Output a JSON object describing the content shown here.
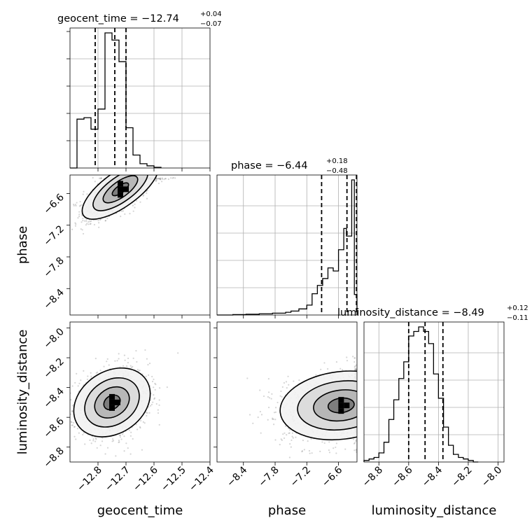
{
  "chart_data": {
    "type": "corner",
    "parameters": [
      "geocent_time",
      "phase",
      "luminosity_distance"
    ],
    "axis_labels": {
      "x": [
        "geocent_time",
        "phase",
        "luminosity_distance"
      ],
      "y": [
        "phase",
        "luminosity_distance"
      ]
    },
    "ticks": {
      "geocent_time": [
        -12.8,
        -12.7,
        -12.6,
        -12.5,
        -12.4
      ],
      "phase": [
        -8.4,
        -7.8,
        -7.2,
        -6.6
      ],
      "luminosity_distance": [
        -8.8,
        -8.6,
        -8.4,
        -8.2,
        -8.0
      ]
    },
    "ranges": {
      "geocent_time": [
        -12.9,
        -12.4
      ],
      "phase": [
        -8.9,
        -6.25
      ],
      "luminosity_distance": [
        -8.9,
        -7.96
      ]
    },
    "titles": [
      {
        "param": "geocent_time",
        "prefix": "geocent_time = −12.74",
        "sup": "+0.04",
        "sub": "−0.07"
      },
      {
        "param": "phase",
        "prefix": "phase = −6.44",
        "sup": "+0.18",
        "sub": "−0.48"
      },
      {
        "param": "luminosity_distance",
        "prefix": "luminosity_distance = −8.49",
        "sup": "+0.12",
        "sub": "−0.11"
      }
    ],
    "quantiles": {
      "geocent_time": [
        -12.81,
        -12.74,
        -12.7
      ],
      "phase": [
        -6.92,
        -6.44,
        -6.26
      ],
      "luminosity_distance": [
        -8.6,
        -8.49,
        -8.37
      ]
    },
    "histograms": {
      "geocent_time": {
        "edges": [
          -12.9,
          -12.875,
          -12.85,
          -12.825,
          -12.8,
          -12.775,
          -12.75,
          -12.725,
          -12.7,
          -12.675,
          -12.65,
          -12.625,
          -12.6,
          -12.575
        ],
        "counts": [
          0,
          0.34,
          0.35,
          0.27,
          0.41,
          0.94,
          0.89,
          0.74,
          0.28,
          0.09,
          0.03,
          0.015,
          0.005
        ]
      },
      "phase": {
        "edges": [
          -8.9,
          -8.6,
          -8.35,
          -8.1,
          -7.85,
          -7.6,
          -7.5,
          -7.35,
          -7.2,
          -7.1,
          -7.0,
          -6.9,
          -6.8,
          -6.7,
          -6.6,
          -6.5,
          -6.45,
          -6.35,
          -6.3,
          -6.25
        ],
        "counts": [
          0,
          0.003,
          0.005,
          0.008,
          0.012,
          0.018,
          0.026,
          0.04,
          0.065,
          0.14,
          0.195,
          0.24,
          0.31,
          0.29,
          0.43,
          0.57,
          0.52,
          0.89,
          0.135
        ]
      },
      "luminosity_distance": {
        "edges": [
          -8.9,
          -8.866,
          -8.833,
          -8.8,
          -8.766,
          -8.733,
          -8.7,
          -8.666,
          -8.633,
          -8.6,
          -8.566,
          -8.533,
          -8.5,
          -8.466,
          -8.433,
          -8.4,
          -8.366,
          -8.333,
          -8.3,
          -8.266,
          -8.233,
          -8.2,
          -8.166,
          -8.133
        ],
        "counts": [
          0.01,
          0.02,
          0.03,
          0.06,
          0.13,
          0.28,
          0.41,
          0.55,
          0.66,
          0.83,
          0.86,
          0.89,
          0.86,
          0.78,
          0.58,
          0.42,
          0.23,
          0.11,
          0.05,
          0.03,
          0.02,
          0.01,
          0
        ]
      }
    },
    "joint": [
      {
        "x": "geocent_time",
        "y": "phase",
        "center": [
          -12.72,
          -6.52
        ],
        "spread": [
          0.065,
          0.27
        ],
        "correlation": 0.72
      },
      {
        "x": "geocent_time",
        "y": "luminosity_distance",
        "center": [
          -12.75,
          -8.5
        ],
        "spread": [
          0.065,
          0.11
        ],
        "correlation": 0.25
      },
      {
        "x": "phase",
        "y": "luminosity_distance",
        "center": [
          -6.55,
          -8.52
        ],
        "spread": [
          0.55,
          0.11
        ],
        "correlation": 0.15
      }
    ],
    "style": {
      "hist_color": "#000000",
      "quantile_line": "dashed",
      "point_color": "#888888",
      "grid": true
    }
  }
}
